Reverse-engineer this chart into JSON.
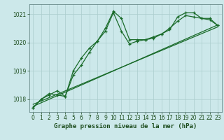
{
  "title": "Graphe pression niveau de la mer (hPa)",
  "bg_color": "#cce8ea",
  "grid_color": "#aacccc",
  "line_color": "#1a6b2a",
  "xlim": [
    -0.5,
    23.5
  ],
  "ylim": [
    1017.55,
    1021.35
  ],
  "xticks": [
    0,
    1,
    2,
    3,
    4,
    5,
    6,
    7,
    8,
    9,
    10,
    11,
    12,
    13,
    14,
    15,
    16,
    17,
    18,
    19,
    20,
    21,
    22,
    23
  ],
  "yticks": [
    1018,
    1019,
    1020,
    1021
  ],
  "series1_x": [
    0,
    1,
    2,
    3,
    4,
    5,
    6,
    7,
    8,
    9,
    10,
    11,
    12,
    13,
    14,
    15,
    16,
    17,
    18,
    19,
    20,
    21,
    22,
    23
  ],
  "series1_y": [
    1017.7,
    1018.0,
    1018.15,
    1018.3,
    1018.1,
    1019.0,
    1019.45,
    1019.8,
    1020.05,
    1020.5,
    1021.1,
    1020.85,
    1020.1,
    1020.1,
    1020.1,
    1020.15,
    1020.3,
    1020.45,
    1020.9,
    1021.05,
    1021.05,
    1020.85,
    1020.85,
    1020.6
  ],
  "series2_x": [
    0,
    1,
    2,
    3,
    4,
    5,
    6,
    7,
    8,
    9,
    10,
    11,
    12,
    13,
    14,
    15,
    16,
    17,
    18,
    19,
    20,
    21,
    22,
    23
  ],
  "series2_y": [
    1017.7,
    1018.0,
    1018.2,
    1018.15,
    1018.1,
    1018.85,
    1019.2,
    1019.65,
    1020.05,
    1020.4,
    1021.05,
    1020.4,
    1019.95,
    1020.05,
    1020.1,
    1020.2,
    1020.3,
    1020.5,
    1020.75,
    1020.95,
    1020.9,
    1020.85,
    1020.8,
    1020.6
  ],
  "series3_x": [
    0,
    23
  ],
  "series3_y": [
    1017.75,
    1020.62
  ],
  "series4_x": [
    0,
    23
  ],
  "series4_y": [
    1017.82,
    1020.55
  ]
}
